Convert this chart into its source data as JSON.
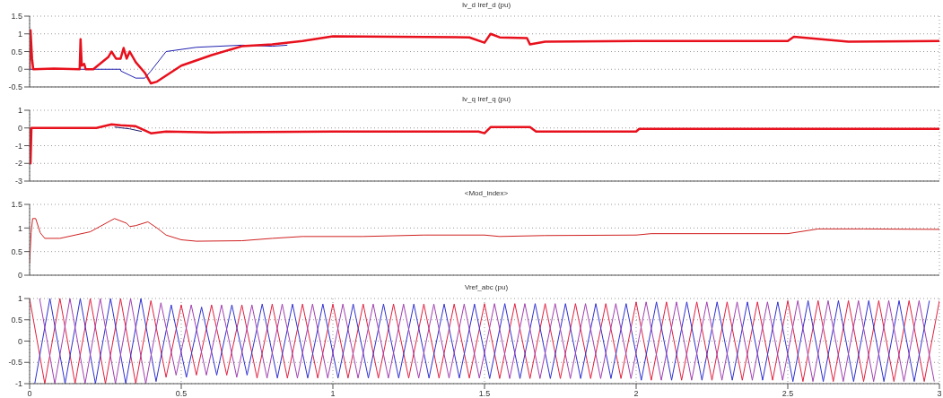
{
  "chart_data": [
    {
      "type": "line",
      "title": "Iv_d  Iref_d (pu)",
      "xlim": [
        0,
        3
      ],
      "xticks": [
        0,
        0.5,
        1,
        1.5,
        2,
        2.5,
        3
      ],
      "ylim": [
        -0.5,
        1.5
      ],
      "yticks": [
        -0.5,
        0,
        0.5,
        1,
        1.5
      ],
      "grid": true,
      "tick_labels": "y",
      "series": [
        {
          "color": "#2020b0",
          "x": [
            0,
            0.3,
            0.301,
            0.35,
            0.38,
            0.4,
            0.45,
            0.55,
            0.7,
            0.8,
            0.85
          ],
          "values": [
            0,
            0,
            -0.05,
            -0.25,
            -0.25,
            -0.05,
            0.5,
            0.62,
            0.68,
            0.65,
            0.68
          ]
        },
        {
          "color": "#e8101c",
          "x": [
            0,
            0.003,
            0.008,
            0.012,
            0.08,
            0.165,
            0.168,
            0.172,
            0.18,
            0.185,
            0.21,
            0.26,
            0.27,
            0.285,
            0.3,
            0.31,
            0.32,
            0.33,
            0.35,
            0.38,
            0.4,
            0.42,
            0.5,
            0.6,
            0.7,
            0.8,
            0.9,
            1.0,
            1.2,
            1.45,
            1.5,
            1.52,
            1.55,
            1.64,
            1.65,
            1.7,
            2.0,
            2.5,
            2.52,
            2.7,
            3.0
          ],
          "values": [
            0,
            1.1,
            0.3,
            0,
            0.02,
            0,
            0.85,
            0.1,
            0.15,
            0,
            0,
            0.35,
            0.5,
            0.3,
            0.3,
            0.6,
            0.3,
            0.5,
            0.2,
            -0.1,
            -0.4,
            -0.35,
            0.1,
            0.4,
            0.65,
            0.7,
            0.8,
            0.93,
            0.92,
            0.9,
            0.75,
            1.0,
            0.9,
            0.88,
            0.7,
            0.78,
            0.8,
            0.8,
            0.92,
            0.78,
            0.8
          ]
        }
      ]
    },
    {
      "type": "line",
      "title": "Iv_q  Iref_q (pu)",
      "xlim": [
        0,
        3
      ],
      "xticks": [
        0,
        0.5,
        1,
        1.5,
        2,
        2.5,
        3
      ],
      "ylim": [
        -3,
        1
      ],
      "yticks": [
        -3,
        -2,
        -1,
        0,
        1
      ],
      "grid": true,
      "tick_labels": "y",
      "series": [
        {
          "color": "#1a1a6a",
          "x": [
            0.28,
            0.33,
            0.37
          ],
          "values": [
            0.05,
            -0.05,
            -0.2
          ]
        },
        {
          "color": "#e8101c",
          "x": [
            0,
            0.003,
            0.006,
            0.22,
            0.27,
            0.3,
            0.35,
            0.4,
            0.45,
            0.6,
            1.0,
            1.48,
            1.5,
            1.52,
            1.65,
            1.67,
            2.0,
            2.01,
            3.0
          ],
          "values": [
            0,
            -2,
            0,
            0,
            0.2,
            0.15,
            0.1,
            -0.3,
            -0.2,
            -0.25,
            -0.2,
            -0.2,
            -0.3,
            0.05,
            0.05,
            -0.2,
            -0.2,
            -0.05,
            -0.05
          ]
        }
      ]
    },
    {
      "type": "line",
      "title": "<Mod_index>",
      "xlim": [
        0,
        3
      ],
      "xticks": [
        0,
        0.5,
        1,
        1.5,
        2,
        2.5,
        3
      ],
      "ylim": [
        0,
        1.5
      ],
      "yticks": [
        0,
        0.5,
        1,
        1.5
      ],
      "grid": true,
      "tick_labels": "y",
      "series": [
        {
          "color": "#d02020",
          "x": [
            0,
            0.005,
            0.01,
            0.02,
            0.035,
            0.05,
            0.1,
            0.2,
            0.28,
            0.32,
            0.33,
            0.35,
            0.39,
            0.42,
            0.45,
            0.5,
            0.55,
            0.7,
            0.8,
            0.9,
            1.0,
            1.1,
            1.3,
            1.5,
            1.55,
            1.7,
            2.0,
            2.05,
            2.5,
            2.6,
            2.75,
            3.0
          ],
          "values": [
            0.25,
            0.9,
            1.2,
            1.2,
            0.9,
            0.78,
            0.78,
            0.92,
            1.2,
            1.1,
            1.03,
            1.05,
            1.13,
            1.0,
            0.85,
            0.75,
            0.72,
            0.73,
            0.78,
            0.82,
            0.82,
            0.82,
            0.85,
            0.85,
            0.82,
            0.84,
            0.85,
            0.88,
            0.88,
            0.98,
            0.98,
            0.97
          ]
        }
      ]
    },
    {
      "type": "line",
      "title": "Vref_abc (pu)",
      "xlim": [
        0,
        3
      ],
      "xticks": [
        0,
        0.5,
        1,
        1.5,
        2,
        2.5,
        3
      ],
      "ylim": [
        -1,
        1
      ],
      "yticks": [
        -1,
        -0.5,
        0,
        0.5,
        1
      ],
      "grid": true,
      "series": [
        {
          "color": "#e02040",
          "x": [
            0,
            0.05,
            0.1,
            0.15,
            0.2,
            0.25,
            0.3,
            0.35,
            0.4,
            0.45,
            0.5,
            0.55,
            0.6,
            0.65,
            0.7,
            0.75,
            0.8,
            0.85,
            0.9,
            0.95,
            1,
            1.05,
            1.1,
            1.15,
            1.2,
            1.25,
            1.3,
            1.35,
            1.4,
            1.45,
            1.5,
            1.55,
            1.6,
            1.65,
            1.7,
            1.75,
            1.8,
            1.85,
            1.9,
            1.95,
            2,
            2.05,
            2.1,
            2.15,
            2.2,
            2.25,
            2.3,
            2.35,
            2.4,
            2.45,
            2.5,
            2.55,
            2.6,
            2.65,
            2.7,
            2.75,
            2.8,
            2.85,
            2.9,
            2.95,
            3
          ],
          "values": [
            1,
            -1,
            1,
            -1,
            1,
            -1,
            1,
            -1,
            0.95,
            -0.85,
            0.85,
            -0.8,
            0.85,
            -0.8,
            0.85,
            -0.87,
            0.87,
            -0.87,
            0.87,
            -0.87,
            0.87,
            -0.87,
            0.87,
            -0.87,
            0.87,
            -0.87,
            0.87,
            -0.87,
            0.87,
            -0.87,
            0.88,
            -0.88,
            0.88,
            -0.88,
            0.88,
            -0.88,
            0.88,
            -0.88,
            0.88,
            -0.88,
            0.92,
            -0.92,
            0.92,
            -0.92,
            0.92,
            -0.92,
            0.92,
            -0.92,
            0.92,
            -0.92,
            0.95,
            -0.95,
            0.95,
            -0.95,
            0.95,
            -0.95,
            0.95,
            -0.95,
            0.95,
            -0.95,
            0.95
          ]
        },
        {
          "color": "#3030d0",
          "x": [
            0.017,
            0.067,
            0.117,
            0.167,
            0.217,
            0.267,
            0.317,
            0.367,
            0.417,
            0.467,
            0.517,
            0.567,
            0.617,
            0.667,
            0.717,
            0.767,
            0.817,
            0.867,
            0.917,
            0.967,
            1.017,
            1.067,
            1.117,
            1.167,
            1.217,
            1.267,
            1.317,
            1.367,
            1.417,
            1.467,
            1.517,
            1.567,
            1.617,
            1.667,
            1.717,
            1.767,
            1.817,
            1.867,
            1.917,
            1.967,
            2.017,
            2.067,
            2.117,
            2.167,
            2.217,
            2.267,
            2.317,
            2.367,
            2.417,
            2.467,
            2.517,
            2.567,
            2.617,
            2.667,
            2.717,
            2.767,
            2.817,
            2.867,
            2.917,
            2.967
          ],
          "values": [
            -1,
            1,
            -1,
            1,
            -1,
            1,
            -1,
            1,
            -0.95,
            0.85,
            -0.85,
            0.8,
            -0.8,
            0.85,
            -0.8,
            0.87,
            -0.87,
            0.87,
            -0.87,
            0.87,
            -0.87,
            0.87,
            -0.87,
            0.87,
            -0.87,
            0.87,
            -0.87,
            0.87,
            -0.87,
            0.87,
            -0.88,
            0.88,
            -0.88,
            0.88,
            -0.88,
            0.88,
            -0.88,
            0.88,
            -0.88,
            0.88,
            -0.92,
            0.92,
            -0.92,
            0.92,
            -0.92,
            0.92,
            -0.92,
            0.92,
            -0.92,
            0.92,
            -0.95,
            0.95,
            -0.95,
            0.95,
            -0.95,
            0.95,
            -0.95,
            0.95,
            -0.95,
            0.95
          ]
        },
        {
          "color": "#a040b0",
          "x": [
            0.033,
            0.083,
            0.133,
            0.183,
            0.233,
            0.283,
            0.333,
            0.383,
            0.433,
            0.483,
            0.533,
            0.583,
            0.633,
            0.683,
            0.733,
            0.783,
            0.833,
            0.883,
            0.933,
            0.983,
            1.033,
            1.083,
            1.133,
            1.183,
            1.233,
            1.283,
            1.333,
            1.383,
            1.433,
            1.483,
            1.533,
            1.583,
            1.633,
            1.683,
            1.733,
            1.783,
            1.833,
            1.883,
            1.933,
            1.983,
            2.033,
            2.083,
            2.133,
            2.183,
            2.233,
            2.283,
            2.333,
            2.383,
            2.433,
            2.483,
            2.533,
            2.583,
            2.633,
            2.683,
            2.733,
            2.783,
            2.833,
            2.883,
            2.933,
            2.983
          ],
          "values": [
            1,
            -1,
            1,
            -1,
            1,
            -1,
            1,
            -1,
            0.9,
            -0.8,
            0.85,
            -0.8,
            0.85,
            -0.85,
            0.85,
            -0.87,
            0.87,
            -0.87,
            0.87,
            -0.87,
            0.87,
            -0.87,
            0.87,
            -0.87,
            0.87,
            -0.87,
            0.87,
            -0.87,
            0.87,
            -0.87,
            0.88,
            -0.88,
            0.88,
            -0.88,
            0.88,
            -0.88,
            0.88,
            -0.88,
            0.88,
            -0.88,
            0.92,
            -0.92,
            0.92,
            -0.92,
            0.92,
            -0.92,
            0.92,
            -0.92,
            0.92,
            -0.92,
            0.95,
            -0.95,
            0.95,
            -0.95,
            0.95,
            -0.95,
            0.95,
            -0.95,
            0.95,
            -0.95
          ]
        }
      ]
    }
  ]
}
